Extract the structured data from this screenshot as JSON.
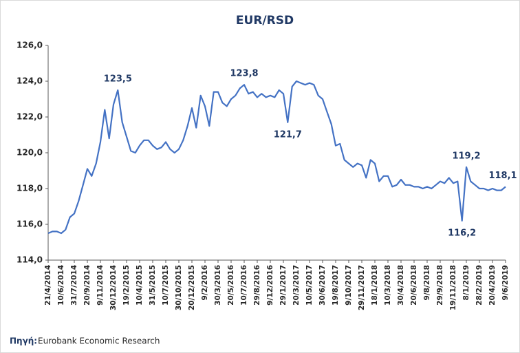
{
  "chart_data": {
    "type": "line",
    "title": "EUR/RSD",
    "source_label": "Πηγή:",
    "source": "Eurobank Economic Research",
    "color": "#4472c4",
    "ylim": [
      114,
      126
    ],
    "yticks": [
      {
        "value": 114,
        "label": "114,0"
      },
      {
        "value": 116,
        "label": "116,0"
      },
      {
        "value": 118,
        "label": "118,0"
      },
      {
        "value": 120,
        "label": "120,0"
      },
      {
        "value": 122,
        "label": "122,0"
      },
      {
        "value": 124,
        "label": "124,0"
      },
      {
        "value": 126,
        "label": "126,0"
      }
    ],
    "categories": [
      "21/4/2014",
      null,
      null,
      "10/6/2014",
      null,
      null,
      "31/7/2014",
      null,
      null,
      "20/9/2014",
      null,
      null,
      "9/11/2014",
      null,
      null,
      "30/12/2014",
      null,
      null,
      "19/2/2015",
      null,
      null,
      "10/4/2015",
      null,
      null,
      "31/5/2015",
      null,
      null,
      "10/7/2015",
      null,
      null,
      "30/10/2015",
      null,
      null,
      "20/12/2015",
      null,
      null,
      "9/2/2016",
      null,
      null,
      "30/3/2016",
      null,
      null,
      "20/5/2016",
      null,
      null,
      "10/7/2016",
      null,
      null,
      "29/8/2016",
      null,
      null,
      "9/12/2016",
      null,
      null,
      "29/1/2017",
      null,
      null,
      "20/3/2017",
      null,
      null,
      "10/5/2017",
      null,
      null,
      "30/6/2017",
      null,
      null,
      "19/8/2017",
      null,
      null,
      "9/10/2017",
      null,
      null,
      "29/11/2017",
      null,
      null,
      "18/1/2018",
      null,
      null,
      "10/3/2018",
      null,
      null,
      "30/4/2018",
      null,
      null,
      "20/6/2018",
      null,
      null,
      "9/8/2018",
      null,
      null,
      "29/9/2018",
      null,
      null,
      "19/11/2018",
      null,
      null,
      "8/1/2019",
      null,
      null,
      "28/2/2019",
      null,
      null,
      "20/4/2019",
      null,
      null,
      "9/6/2019"
    ],
    "values": [
      115.5,
      115.6,
      115.6,
      115.5,
      115.7,
      116.4,
      116.6,
      117.3,
      118.2,
      119.1,
      118.7,
      119.4,
      120.6,
      122.4,
      120.8,
      122.7,
      123.5,
      121.7,
      120.9,
      120.1,
      120.0,
      120.4,
      120.7,
      120.7,
      120.4,
      120.2,
      120.3,
      120.6,
      120.2,
      120.0,
      120.2,
      120.7,
      121.5,
      122.5,
      121.4,
      123.2,
      122.6,
      121.5,
      123.4,
      123.4,
      122.8,
      122.6,
      123.0,
      123.2,
      123.6,
      123.8,
      123.3,
      123.4,
      123.1,
      123.3,
      123.1,
      123.2,
      123.1,
      123.5,
      123.3,
      121.7,
      123.7,
      124.0,
      123.9,
      123.8,
      123.9,
      123.8,
      123.2,
      123.0,
      122.3,
      121.6,
      120.4,
      120.5,
      119.6,
      119.4,
      119.2,
      119.4,
      119.3,
      118.6,
      119.6,
      119.4,
      118.4,
      118.7,
      118.7,
      118.1,
      118.2,
      118.5,
      118.2,
      118.2,
      118.1,
      118.1,
      118.0,
      118.1,
      118.0,
      118.2,
      118.4,
      118.3,
      118.6,
      118.3,
      118.4,
      116.2,
      119.2,
      118.4,
      118.2,
      118.0,
      118.0,
      117.9,
      118.0,
      117.9,
      117.9,
      118.1
    ],
    "value_labels": [
      null,
      null,
      null,
      null,
      null,
      null,
      null,
      null,
      null,
      null,
      null,
      null,
      null,
      null,
      null,
      null,
      "123,5",
      null,
      null,
      null,
      null,
      null,
      null,
      null,
      null,
      null,
      null,
      null,
      null,
      null,
      null,
      null,
      null,
      null,
      null,
      null,
      null,
      null,
      null,
      null,
      null,
      null,
      null,
      null,
      null,
      "123,8",
      null,
      null,
      null,
      null,
      null,
      null,
      null,
      null,
      null,
      "121,7",
      null,
      null,
      null,
      null,
      null,
      null,
      null,
      null,
      null,
      null,
      null,
      null,
      null,
      null,
      null,
      null,
      null,
      null,
      null,
      null,
      null,
      null,
      null,
      null,
      null,
      null,
      null,
      null,
      null,
      null,
      null,
      null,
      null,
      null,
      null,
      null,
      null,
      null,
      null,
      "116,2",
      "119,2",
      null,
      null,
      null,
      null,
      null,
      null,
      null,
      null,
      "118,1"
    ]
  }
}
